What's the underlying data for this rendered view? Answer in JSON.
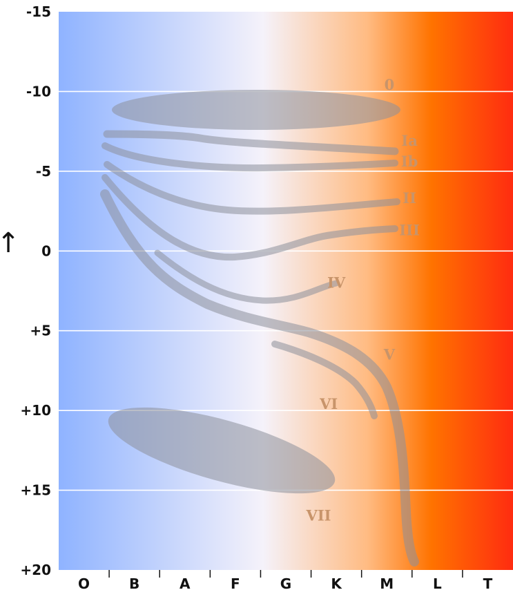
{
  "chart_data": {
    "type": "scatter",
    "title": "",
    "xlabel": "",
    "ylabel": "↑",
    "x_categories": [
      "O",
      "B",
      "A",
      "F",
      "G",
      "K",
      "M",
      "L",
      "T"
    ],
    "yticks": [
      "-15",
      "-10",
      "-5",
      "0",
      "+5",
      "+10",
      "+15",
      "+20"
    ],
    "ylim": [
      -15,
      20
    ],
    "y_inverted": true,
    "grid": true,
    "background_gradient": [
      "#8fb3ff",
      "#f5f2fa",
      "#ffbb82",
      "#ff7300",
      "#ff2c10"
    ],
    "luminosity_classes": [
      {
        "name": "0",
        "shape": "region",
        "label_x": 6.05,
        "label_y": -10.4
      },
      {
        "name": "Ia",
        "shape": "band",
        "label_x": 6.45,
        "label_y": -6.9
      },
      {
        "name": "Ib",
        "shape": "band",
        "label_x": 6.45,
        "label_y": -5.6
      },
      {
        "name": "II",
        "shape": "band",
        "label_x": 6.45,
        "label_y": -3.3
      },
      {
        "name": "III",
        "shape": "band",
        "label_x": 6.45,
        "label_y": -1.3
      },
      {
        "name": "IV",
        "shape": "band",
        "label_x": 5.0,
        "label_y": 2.0
      },
      {
        "name": "V",
        "shape": "band",
        "label_x": 6.05,
        "label_y": 6.5
      },
      {
        "name": "VI",
        "shape": "band",
        "label_x": 4.85,
        "label_y": 9.6
      },
      {
        "name": "VII",
        "shape": "region",
        "label_x": 4.65,
        "label_y": 16.6
      }
    ]
  }
}
